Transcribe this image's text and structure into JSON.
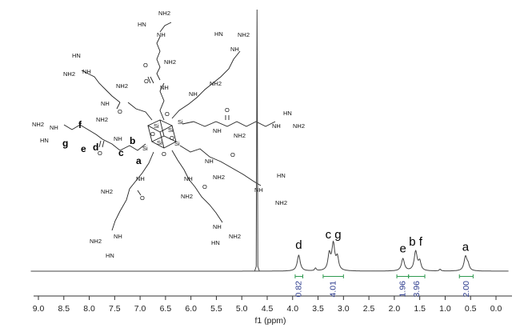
{
  "chart_data": {
    "type": "line",
    "xlabel": "f1 (ppm)",
    "x_reversed": true,
    "xlim": [
      -0.3,
      9.2
    ],
    "x_ticks": [
      "9.0",
      "8.5",
      "8.0",
      "7.5",
      "7.0",
      "6.5",
      "6.0",
      "5.5",
      "5.0",
      "4.5",
      "4.0",
      "3.5",
      "3.0",
      "2.5",
      "2.0",
      "1.5",
      "1.0",
      "0.5",
      "0.0"
    ],
    "solvent_peak_ppm": 4.7,
    "peaks": [
      {
        "label": "d",
        "ppm": 3.88,
        "height": 0.18
      },
      {
        "label": "c g",
        "ppm": 3.2,
        "height": 0.3
      },
      {
        "label": "e",
        "ppm": 1.83,
        "height": 0.14
      },
      {
        "label": "b f",
        "ppm": 1.58,
        "height": 0.22
      },
      {
        "label": "a",
        "ppm": 0.6,
        "height": 0.16
      }
    ],
    "integrals": [
      {
        "from": 3.95,
        "to": 3.8,
        "value": "0.82"
      },
      {
        "from": 3.4,
        "to": 3.0,
        "value": "4.01"
      },
      {
        "from": 1.95,
        "to": 1.72,
        "value": "1.96"
      },
      {
        "from": 1.72,
        "to": 1.4,
        "value": "3.96"
      },
      {
        "from": 0.72,
        "to": 0.45,
        "value": "2.00"
      }
    ],
    "structure_labels": {
      "amine": "NH2",
      "imine": "HN",
      "imine_short": "NH",
      "nitrogen": "N",
      "amide_nh": "NH",
      "silicon": "Si",
      "oxygen": "O",
      "chain_letters": [
        "a",
        "b",
        "c",
        "d",
        "e",
        "f",
        "g"
      ]
    }
  }
}
